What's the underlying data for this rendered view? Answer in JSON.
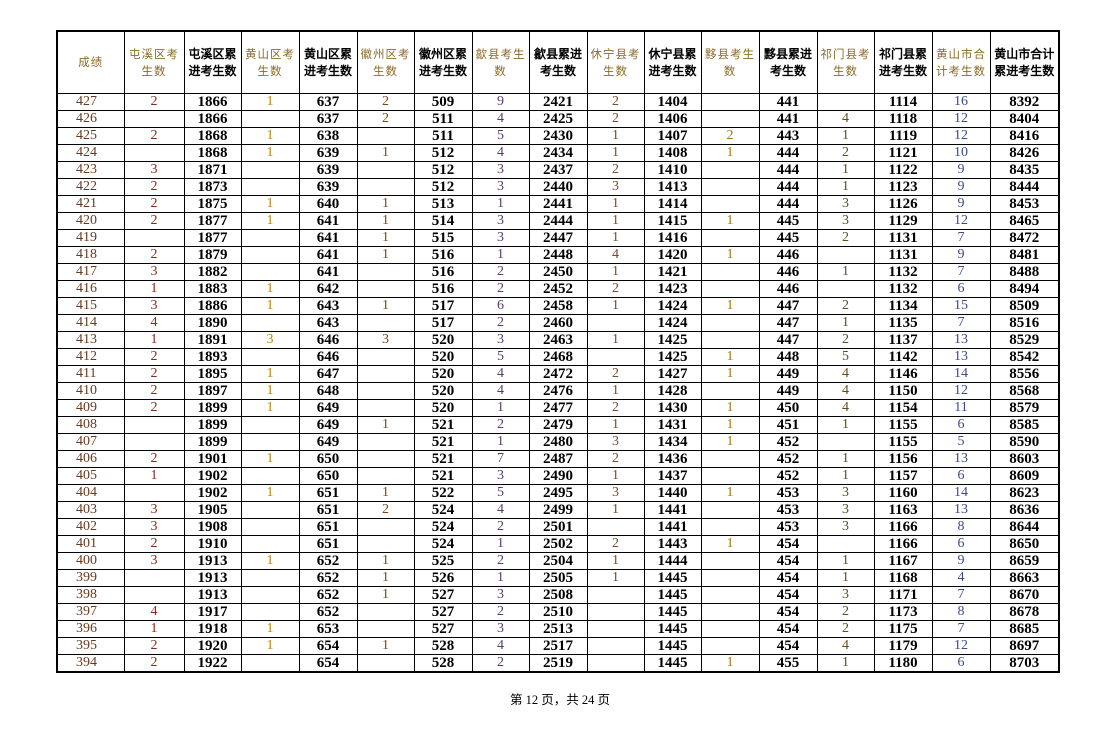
{
  "table": {
    "headers": [
      "成绩",
      "屯溪区考生数",
      "屯溪区累进考生数",
      "黄山区考生数",
      "黄山区累进考生数",
      "徽州区考生数",
      "徽州区累进考生数",
      "歙县考生数",
      "歙县累进考生数",
      "休宁县考生数",
      "休宁县累进考生数",
      "黟县考生数",
      "黟县累进考生数",
      "祁门县考生数",
      "祁门县累进考生数",
      "黄山市合计考生数",
      "黄山市合计累进考生数"
    ],
    "rows": [
      [
        "427",
        "2",
        "1866",
        "1",
        "637",
        "2",
        "509",
        "9",
        "2421",
        "2",
        "1404",
        "",
        "441",
        "",
        "1114",
        "16",
        "8392"
      ],
      [
        "426",
        "",
        "1866",
        "",
        "637",
        "2",
        "511",
        "4",
        "2425",
        "2",
        "1406",
        "",
        "441",
        "4",
        "1118",
        "12",
        "8404"
      ],
      [
        "425",
        "2",
        "1868",
        "1",
        "638",
        "",
        "511",
        "5",
        "2430",
        "1",
        "1407",
        "2",
        "443",
        "1",
        "1119",
        "12",
        "8416"
      ],
      [
        "424",
        "",
        "1868",
        "1",
        "639",
        "1",
        "512",
        "4",
        "2434",
        "1",
        "1408",
        "1",
        "444",
        "2",
        "1121",
        "10",
        "8426"
      ],
      [
        "423",
        "3",
        "1871",
        "",
        "639",
        "",
        "512",
        "3",
        "2437",
        "2",
        "1410",
        "",
        "444",
        "1",
        "1122",
        "9",
        "8435"
      ],
      [
        "422",
        "2",
        "1873",
        "",
        "639",
        "",
        "512",
        "3",
        "2440",
        "3",
        "1413",
        "",
        "444",
        "1",
        "1123",
        "9",
        "8444"
      ],
      [
        "421",
        "2",
        "1875",
        "1",
        "640",
        "1",
        "513",
        "1",
        "2441",
        "1",
        "1414",
        "",
        "444",
        "3",
        "1126",
        "9",
        "8453"
      ],
      [
        "420",
        "2",
        "1877",
        "1",
        "641",
        "1",
        "514",
        "3",
        "2444",
        "1",
        "1415",
        "1",
        "445",
        "3",
        "1129",
        "12",
        "8465"
      ],
      [
        "419",
        "",
        "1877",
        "",
        "641",
        "1",
        "515",
        "3",
        "2447",
        "1",
        "1416",
        "",
        "445",
        "2",
        "1131",
        "7",
        "8472"
      ],
      [
        "418",
        "2",
        "1879",
        "",
        "641",
        "1",
        "516",
        "1",
        "2448",
        "4",
        "1420",
        "1",
        "446",
        "",
        "1131",
        "9",
        "8481"
      ],
      [
        "417",
        "3",
        "1882",
        "",
        "641",
        "",
        "516",
        "2",
        "2450",
        "1",
        "1421",
        "",
        "446",
        "1",
        "1132",
        "7",
        "8488"
      ],
      [
        "416",
        "1",
        "1883",
        "1",
        "642",
        "",
        "516",
        "2",
        "2452",
        "2",
        "1423",
        "",
        "446",
        "",
        "1132",
        "6",
        "8494"
      ],
      [
        "415",
        "3",
        "1886",
        "1",
        "643",
        "1",
        "517",
        "6",
        "2458",
        "1",
        "1424",
        "1",
        "447",
        "2",
        "1134",
        "15",
        "8509"
      ],
      [
        "414",
        "4",
        "1890",
        "",
        "643",
        "",
        "517",
        "2",
        "2460",
        "",
        "1424",
        "",
        "447",
        "1",
        "1135",
        "7",
        "8516"
      ],
      [
        "413",
        "1",
        "1891",
        "3",
        "646",
        "3",
        "520",
        "3",
        "2463",
        "1",
        "1425",
        "",
        "447",
        "2",
        "1137",
        "13",
        "8529"
      ],
      [
        "412",
        "2",
        "1893",
        "",
        "646",
        "",
        "520",
        "5",
        "2468",
        "",
        "1425",
        "1",
        "448",
        "5",
        "1142",
        "13",
        "8542"
      ],
      [
        "411",
        "2",
        "1895",
        "1",
        "647",
        "",
        "520",
        "4",
        "2472",
        "2",
        "1427",
        "1",
        "449",
        "4",
        "1146",
        "14",
        "8556"
      ],
      [
        "410",
        "2",
        "1897",
        "1",
        "648",
        "",
        "520",
        "4",
        "2476",
        "1",
        "1428",
        "",
        "449",
        "4",
        "1150",
        "12",
        "8568"
      ],
      [
        "409",
        "2",
        "1899",
        "1",
        "649",
        "",
        "520",
        "1",
        "2477",
        "2",
        "1430",
        "1",
        "450",
        "4",
        "1154",
        "11",
        "8579"
      ],
      [
        "408",
        "",
        "1899",
        "",
        "649",
        "1",
        "521",
        "2",
        "2479",
        "1",
        "1431",
        "1",
        "451",
        "1",
        "1155",
        "6",
        "8585"
      ],
      [
        "407",
        "",
        "1899",
        "",
        "649",
        "",
        "521",
        "1",
        "2480",
        "3",
        "1434",
        "1",
        "452",
        "",
        "1155",
        "5",
        "8590"
      ],
      [
        "406",
        "2",
        "1901",
        "1",
        "650",
        "",
        "521",
        "7",
        "2487",
        "2",
        "1436",
        "",
        "452",
        "1",
        "1156",
        "13",
        "8603"
      ],
      [
        "405",
        "1",
        "1902",
        "",
        "650",
        "",
        "521",
        "3",
        "2490",
        "1",
        "1437",
        "",
        "452",
        "1",
        "1157",
        "6",
        "8609"
      ],
      [
        "404",
        "",
        "1902",
        "1",
        "651",
        "1",
        "522",
        "5",
        "2495",
        "3",
        "1440",
        "1",
        "453",
        "3",
        "1160",
        "14",
        "8623"
      ],
      [
        "403",
        "3",
        "1905",
        "",
        "651",
        "2",
        "524",
        "4",
        "2499",
        "1",
        "1441",
        "",
        "453",
        "3",
        "1163",
        "13",
        "8636"
      ],
      [
        "402",
        "3",
        "1908",
        "",
        "651",
        "",
        "524",
        "2",
        "2501",
        "",
        "1441",
        "",
        "453",
        "3",
        "1166",
        "8",
        "8644"
      ],
      [
        "401",
        "2",
        "1910",
        "",
        "651",
        "",
        "524",
        "1",
        "2502",
        "2",
        "1443",
        "1",
        "454",
        "",
        "1166",
        "6",
        "8650"
      ],
      [
        "400",
        "3",
        "1913",
        "1",
        "652",
        "1",
        "525",
        "2",
        "2504",
        "1",
        "1444",
        "",
        "454",
        "1",
        "1167",
        "9",
        "8659"
      ],
      [
        "399",
        "",
        "1913",
        "",
        "652",
        "1",
        "526",
        "1",
        "2505",
        "1",
        "1445",
        "",
        "454",
        "1",
        "1168",
        "4",
        "8663"
      ],
      [
        "398",
        "",
        "1913",
        "",
        "652",
        "1",
        "527",
        "3",
        "2508",
        "",
        "1445",
        "",
        "454",
        "3",
        "1171",
        "7",
        "8670"
      ],
      [
        "397",
        "4",
        "1917",
        "",
        "652",
        "",
        "527",
        "2",
        "2510",
        "",
        "1445",
        "",
        "454",
        "2",
        "1173",
        "8",
        "8678"
      ],
      [
        "396",
        "1",
        "1918",
        "1",
        "653",
        "",
        "527",
        "3",
        "2513",
        "",
        "1445",
        "",
        "454",
        "2",
        "1175",
        "7",
        "8685"
      ],
      [
        "395",
        "2",
        "1920",
        "1",
        "654",
        "1",
        "528",
        "4",
        "2517",
        "",
        "1445",
        "",
        "454",
        "4",
        "1179",
        "12",
        "8697"
      ],
      [
        "394",
        "2",
        "1922",
        "",
        "654",
        "",
        "528",
        "2",
        "2519",
        "",
        "1445",
        "1",
        "455",
        "1",
        "1180",
        "6",
        "8703"
      ]
    ]
  },
  "footer": {
    "page_label": "第 12 页，共 24 页"
  }
}
